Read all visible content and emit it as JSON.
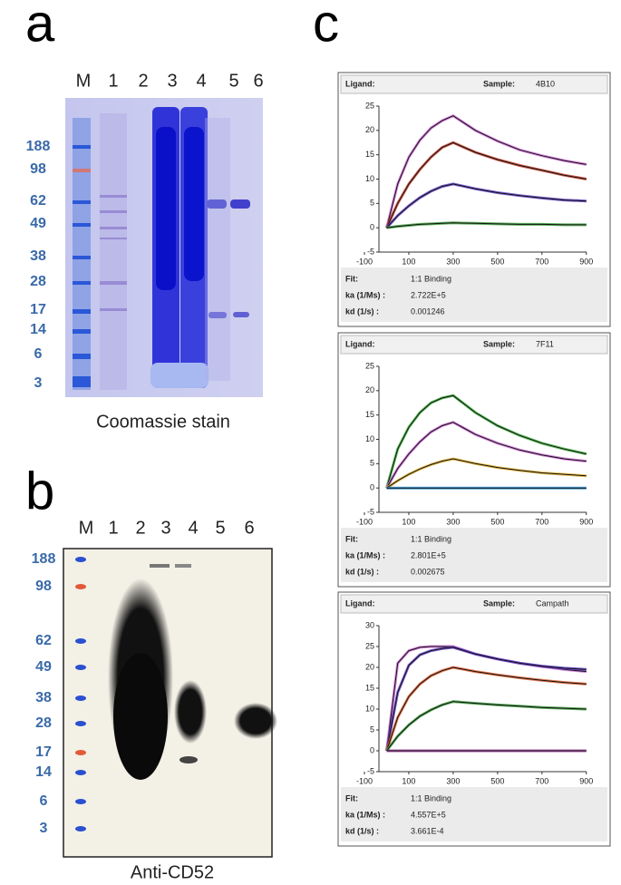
{
  "panels": {
    "a": {
      "label": "a",
      "lanes": [
        "M",
        "1",
        "2",
        "3",
        "4",
        "5",
        "6"
      ],
      "markers": [
        "188",
        "98",
        "62",
        "49",
        "38",
        "28",
        "17",
        "14",
        "6",
        "3"
      ],
      "caption": "Coomassie stain"
    },
    "b": {
      "label": "b",
      "lanes": [
        "M",
        "1",
        "2",
        "3",
        "4",
        "5",
        "6"
      ],
      "markers": [
        "188",
        "98",
        "62",
        "49",
        "38",
        "28",
        "17",
        "14",
        "6",
        "3"
      ],
      "caption": "Anti-CD52"
    },
    "c": {
      "label": "c",
      "sensorgrams": [
        {
          "ligand_label": "Ligand:",
          "sample_label": "Sample:",
          "sample": "4B10",
          "x": [
            0,
            50,
            100,
            150,
            200,
            250,
            300,
            400,
            500,
            600,
            700,
            800,
            900
          ],
          "xlim": [
            -100,
            950
          ],
          "xticks": [
            -100,
            100,
            300,
            500,
            700,
            900
          ],
          "ylim": [
            -5,
            25
          ],
          "yticks": [
            -5,
            0,
            5,
            10,
            15,
            20,
            25
          ],
          "series": [
            {
              "color": "#d070d8",
              "values": [
                0,
                9,
                14.5,
                18,
                20.5,
                22,
                23,
                20,
                17.8,
                16,
                14.8,
                13.8,
                13
              ]
            },
            {
              "color": "#c8402a",
              "values": [
                0,
                5,
                9,
                12,
                14.5,
                16.5,
                17.5,
                15.5,
                14,
                12.8,
                11.8,
                10.8,
                10
              ]
            },
            {
              "color": "#6040c8",
              "values": [
                0,
                2.5,
                4.5,
                6.2,
                7.5,
                8.5,
                9,
                8,
                7.2,
                6.6,
                6.1,
                5.7,
                5.5
              ]
            },
            {
              "color": "#40a040",
              "values": [
                0,
                0.3,
                0.5,
                0.7,
                0.8,
                0.9,
                1,
                0.9,
                0.8,
                0.7,
                0.7,
                0.6,
                0.6
              ]
            }
          ],
          "fit_label": "Fit:",
          "fit": "1:1 Binding",
          "ka_label": "ka (1/Ms) :",
          "ka": "2.722E+5",
          "kd_label": "kd (1/s) :",
          "kd": "0.001246"
        },
        {
          "ligand_label": "Ligand:",
          "sample_label": "Sample:",
          "sample": "7F11",
          "x": [
            0,
            50,
            100,
            150,
            200,
            250,
            300,
            400,
            500,
            600,
            700,
            800,
            900
          ],
          "xlim": [
            -100,
            950
          ],
          "xticks": [
            -100,
            100,
            300,
            500,
            700,
            900
          ],
          "ylim": [
            -5,
            25
          ],
          "yticks": [
            -5,
            0,
            5,
            10,
            15,
            20,
            25
          ],
          "series": [
            {
              "color": "#40b040",
              "values": [
                0,
                8,
                12.5,
                15.5,
                17.5,
                18.5,
                19,
                15.5,
                12.8,
                10.8,
                9.2,
                8,
                7
              ]
            },
            {
              "color": "#d070d8",
              "values": [
                0,
                4,
                7,
                9.5,
                11.5,
                12.8,
                13.5,
                11,
                9.2,
                7.8,
                6.8,
                6,
                5.5
              ]
            },
            {
              "color": "#e0b030",
              "values": [
                0,
                1.5,
                2.8,
                3.9,
                4.8,
                5.5,
                6,
                5,
                4.2,
                3.6,
                3.1,
                2.8,
                2.5
              ]
            },
            {
              "color": "#3090d0",
              "values": [
                0,
                0,
                0,
                0,
                0,
                0,
                0,
                0,
                0,
                0,
                0,
                0,
                0
              ]
            }
          ],
          "fit_label": "Fit:",
          "fit": "1:1 Binding",
          "ka_label": "ka (1/Ms) :",
          "ka": "2.801E+5",
          "kd_label": "kd (1/s) :",
          "kd": "0.002675"
        },
        {
          "ligand_label": "Ligand:",
          "sample_label": "Sample:",
          "sample": "Campath",
          "x": [
            0,
            50,
            100,
            150,
            200,
            250,
            300,
            400,
            500,
            600,
            700,
            800,
            900
          ],
          "xlim": [
            -100,
            950
          ],
          "xticks": [
            -100,
            100,
            300,
            500,
            700,
            900
          ],
          "ylim": [
            -5,
            30
          ],
          "yticks": [
            -5,
            0,
            5,
            10,
            15,
            20,
            25,
            30
          ],
          "series": [
            {
              "color": "#d070d8",
              "values": [
                0,
                21,
                24,
                24.8,
                25,
                25,
                25,
                23.2,
                22,
                21,
                20.2,
                19.5,
                19
              ]
            },
            {
              "color": "#6040c8",
              "values": [
                0,
                14,
                20.5,
                23,
                24,
                24.5,
                24.8,
                23.2,
                22,
                21,
                20.3,
                19.8,
                19.5
              ]
            },
            {
              "color": "#e06030",
              "values": [
                0,
                8,
                13,
                16,
                18,
                19.2,
                20,
                19,
                18.2,
                17.5,
                16.9,
                16.4,
                16
              ]
            },
            {
              "color": "#40a040",
              "values": [
                0,
                3.5,
                6.2,
                8.3,
                9.8,
                11,
                11.8,
                11.4,
                11,
                10.7,
                10.4,
                10.2,
                10
              ]
            },
            {
              "color": "#a040a0",
              "values": [
                0,
                0,
                0,
                0,
                0,
                0,
                0,
                0,
                0,
                0,
                0,
                0,
                0
              ]
            }
          ],
          "fit_label": "Fit:",
          "fit": "1:1 Binding",
          "ka_label": "ka (1/Ms) :",
          "ka": "4.557E+5",
          "kd_label": "kd (1/s) :",
          "kd": "3.661E-4"
        }
      ]
    }
  }
}
